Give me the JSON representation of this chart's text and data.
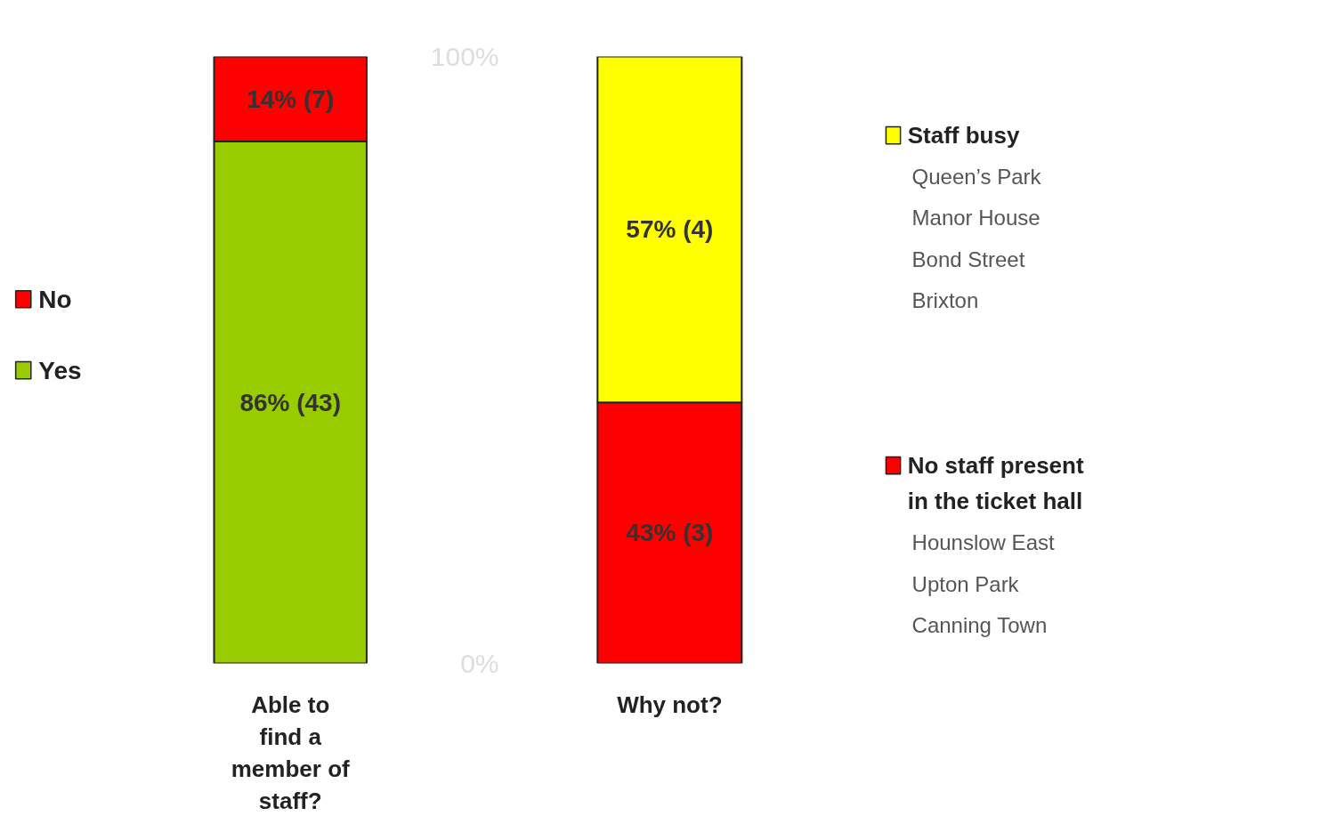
{
  "chart_data": [
    {
      "type": "bar",
      "stacked": true,
      "categories": [
        "Able to find a member of staff?"
      ],
      "ylim": [
        0,
        100
      ],
      "tick_labels": "x",
      "legend": "left",
      "series": [
        {
          "name": "Yes",
          "color": "#99cc00",
          "values": [
            86
          ],
          "value_labels": [
            "86% (43)"
          ]
        },
        {
          "name": "No",
          "color": "#ff0000",
          "values": [
            14
          ],
          "value_labels": [
            "14% (7)"
          ]
        }
      ]
    },
    {
      "type": "bar",
      "stacked": true,
      "categories": [
        "Why not?"
      ],
      "ylim": [
        0,
        100
      ],
      "yticks": [
        {
          "value": 0,
          "label": "0%"
        },
        {
          "value": 100,
          "label": "100%"
        }
      ],
      "legend": "right",
      "series": [
        {
          "name": "No staff present in the ticket hall",
          "color": "#ff0000",
          "values": [
            43
          ],
          "value_labels": [
            "43% (3)"
          ]
        },
        {
          "name": "Staff busy",
          "color": "#ffff00",
          "values": [
            57
          ],
          "value_labels": [
            "57% (4)"
          ]
        }
      ],
      "annotations": [
        "Hounslow East\nUpton Park\nCanning Town",
        "Queen’s Park\nManor House\nBond Street\nBrixton"
      ]
    }
  ]
}
